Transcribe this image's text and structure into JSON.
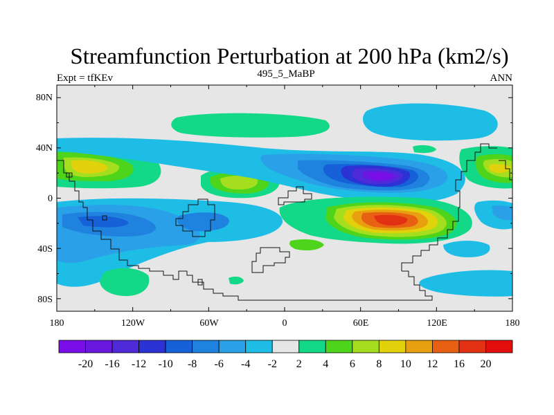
{
  "title": "Streamfunction Perturbation at 200 hPa (km2/s)",
  "left_string": "Expt = tfKEv",
  "center_string": "495_5_MaBP",
  "right_string": "ANN",
  "y_ticks": [
    "80N",
    "40N",
    "0",
    "40S",
    "80S"
  ],
  "x_ticks": [
    "180",
    "120W",
    "60W",
    "0",
    "60E",
    "120E",
    "180"
  ],
  "colorbar": {
    "labels": [
      "-20",
      "-16",
      "-12",
      "-10",
      "-8",
      "-6",
      "-4",
      "-2",
      "2",
      "4",
      "6",
      "8",
      "10",
      "12",
      "16",
      "20"
    ],
    "colors": [
      "#7a0ee8",
      "#6a17e0",
      "#4f2ad8",
      "#2b33d4",
      "#1660d8",
      "#1e82de",
      "#2aa0e8",
      "#1ebde6",
      "#e6e6e6",
      "#13d888",
      "#4ed41a",
      "#a4de1e",
      "#e2d20c",
      "#e8a010",
      "#e86012",
      "#e23012",
      "#e20e0e"
    ]
  },
  "map": {
    "projection": "cylindrical equidistant",
    "lon_range": [
      -180,
      180
    ],
    "lat_range": [
      -90,
      90
    ],
    "field": "streamfunction perturbation",
    "units": "km2/s",
    "notable_features": [
      {
        "name": "negative minimum",
        "lon": 85,
        "lat": 16,
        "level": "-20"
      },
      {
        "name": "positive maximum",
        "lon": 90,
        "lat": -17,
        "level": "16"
      },
      {
        "name": "positive center",
        "lon": -150,
        "lat": 22,
        "level": "8"
      },
      {
        "name": "positive center",
        "lon": -35,
        "lat": 11,
        "level": "8"
      },
      {
        "name": "negative center",
        "lon": -140,
        "lat": -20,
        "level": "-10"
      }
    ]
  }
}
